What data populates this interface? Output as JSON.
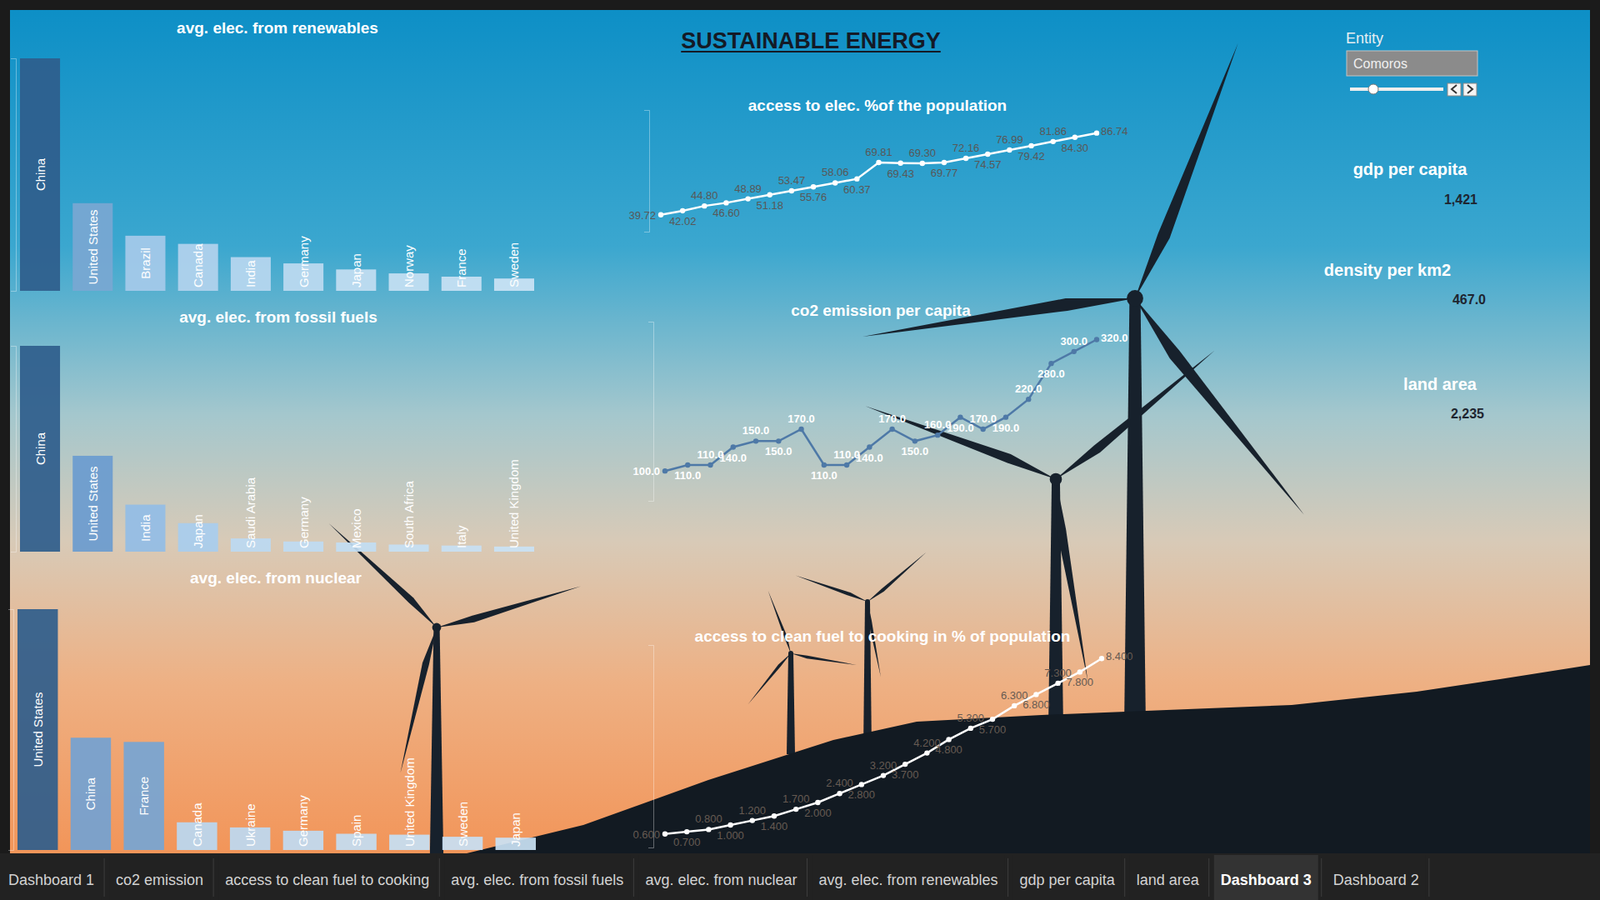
{
  "chart_data": [
    {
      "type": "bar",
      "title": "avg. elec. from renewables",
      "categories": [
        "China",
        "United States",
        "Brazil",
        "Canada",
        "India",
        "Germany",
        "Japan",
        "Norway",
        "France",
        "Sweden"
      ],
      "values": [
        1000,
        377,
        237,
        202,
        145,
        118,
        92,
        75,
        61,
        53
      ],
      "colors": [
        "#2f5d8c",
        "#7aa7d3",
        "#a6caea",
        "#b3d3ee",
        "#b8d7f0",
        "#bedaf1",
        "#c3ddf2",
        "#c6e0f3",
        "#c9e1f4",
        "#cce3f5"
      ],
      "ylim": [
        0,
        1000
      ],
      "yticks": [],
      "data_labels": false
    },
    {
      "type": "bar",
      "title": "avg. elec. from fossil fuels",
      "categories": [
        "China",
        "United States",
        "India",
        "Japan",
        "Saudi Arabia",
        "Germany",
        "Mexico",
        "South Africa",
        "Italy",
        "United Kingdom"
      ],
      "values": [
        3500,
        1630,
        800,
        485,
        225,
        173,
        156,
        121,
        104,
        87
      ],
      "colors": [
        "#2f5d8c",
        "#6a9bcf",
        "#93bde6",
        "#a8cdee",
        "#bcd9f2",
        "#bfdbf3",
        "#c2ddf3",
        "#c5dff4",
        "#c8e0f4",
        "#cae2f5"
      ],
      "ylim": [
        0,
        3500
      ],
      "yticks": [],
      "data_labels": false
    },
    {
      "type": "bar",
      "title": "avg. elec. from nuclear",
      "categories": [
        "United States",
        "China",
        "France",
        "Canada",
        "Ukraine",
        "Germany",
        "Spain",
        "United Kingdom",
        "Sweden",
        "Japan"
      ],
      "values": [
        800,
        373,
        359,
        92,
        75,
        64,
        54,
        51,
        44,
        41
      ],
      "colors": [
        "#2f5d8c",
        "#73a2d2",
        "#76a5d4",
        "#bad8f2",
        "#bdd9f2",
        "#c0dbf3",
        "#c3ddf3",
        "#c5dff4",
        "#c8e0f4",
        "#cae2f5"
      ],
      "ylim": [
        0,
        800
      ],
      "yticks": [],
      "data_labels": false
    },
    {
      "type": "line",
      "title": "access to elec. %of the population",
      "categories": [
        null,
        null,
        null,
        null,
        null,
        null,
        null,
        null,
        null,
        null,
        null,
        null,
        null,
        null,
        null,
        null,
        null,
        null,
        null,
        null,
        null
      ],
      "values": [
        39.72,
        42.02,
        44.8,
        46.6,
        48.89,
        51.18,
        53.47,
        55.76,
        58.06,
        60.37,
        69.81,
        69.43,
        69.3,
        69.77,
        72.16,
        74.57,
        76.99,
        79.42,
        81.86,
        84.3,
        86.74
      ],
      "value_labels": [
        "39.72",
        "42.02",
        "44.80",
        "46.60",
        "48.89",
        "51.18",
        "53.47",
        "55.76",
        "58.06",
        "60.37",
        "69.81",
        "69.43",
        "69.30",
        "69.77",
        "72.16",
        "74.57",
        "76.99",
        "79.42",
        "81.86",
        "84.30",
        "86.74"
      ],
      "color": "#ffffff",
      "marker": "circle",
      "ylim": [
        30,
        100
      ],
      "yticks": [],
      "data_labels": true,
      "tick_labels": false
    },
    {
      "type": "line",
      "title": "co2 emission per capita",
      "categories": [
        null,
        null,
        null,
        null,
        null,
        null,
        null,
        null,
        null,
        null,
        null,
        null,
        null,
        null,
        null,
        null,
        null,
        null,
        null,
        null
      ],
      "values": [
        100,
        110,
        110,
        140,
        150,
        150,
        170,
        110,
        110,
        140,
        170,
        150,
        160,
        190,
        170,
        190,
        220,
        280,
        300,
        320
      ],
      "value_labels": [
        "100.0",
        "110.0",
        "110.0",
        "140.0",
        "150.0",
        "150.0",
        "170.0",
        "110.0",
        "110.0",
        "140.0",
        "170.0",
        "150.0",
        "160.0",
        "190.0",
        "170.0",
        "190.0",
        "220.0",
        "280.0",
        "300.0",
        "320.0"
      ],
      "color": "#4e79a7",
      "marker": "circle",
      "ylim": [
        50,
        350
      ],
      "yticks": [],
      "data_labels": true,
      "tick_labels": false
    },
    {
      "type": "line",
      "title": "access to clean fuel to cooking in % of population",
      "categories": [
        null,
        null,
        null,
        null,
        null,
        null,
        null,
        null,
        null,
        null,
        null,
        null,
        null,
        null,
        null,
        null,
        null,
        null,
        null,
        null,
        null
      ],
      "values": [
        0.6,
        0.7,
        0.8,
        1,
        1.2,
        1.4,
        1.7,
        2,
        2.4,
        2.8,
        3.2,
        3.7,
        4.2,
        4.8,
        5.3,
        5.7,
        6.3,
        6.8,
        7.3,
        7.8,
        8.4
      ],
      "value_labels": [
        "0.600",
        "0.700",
        "0.800",
        "1.000",
        "1.200",
        "1.400",
        "1.700",
        "2.000",
        "2.400",
        "2.800",
        "3.200",
        "3.700",
        "4.200",
        "4.800",
        "5.300",
        "5.700",
        "6.300",
        "6.800",
        "7.300",
        "7.800",
        "8.400"
      ],
      "color": "#ffffff",
      "marker": "circle",
      "ylim": [
        0,
        9
      ],
      "yticks": [],
      "data_labels": true,
      "tick_labels": false
    }
  ],
  "dashboard": {
    "title": "SUSTAINABLE ENERGY",
    "filter": {
      "label": "Entity",
      "value": "Comoros"
    },
    "kpis": [
      {
        "label": "gdp per capita",
        "value": "1,421"
      },
      {
        "label": "density per km2",
        "value": "467.0"
      },
      {
        "label": "land area",
        "value": "2,235"
      }
    ],
    "tabs": [
      {
        "label": "Dashboard 1"
      },
      {
        "label": "co2 emission"
      },
      {
        "label": "access to clean fuel to cooking"
      },
      {
        "label": "avg. elec. from fossil fuels"
      },
      {
        "label": "avg. elec. from nuclear"
      },
      {
        "label": "avg. elec. from renewables"
      },
      {
        "label": "gdp per capita"
      },
      {
        "label": "land area"
      },
      {
        "label": "Dashboard 3",
        "active": true
      },
      {
        "label": "Dashboard 2"
      }
    ]
  }
}
